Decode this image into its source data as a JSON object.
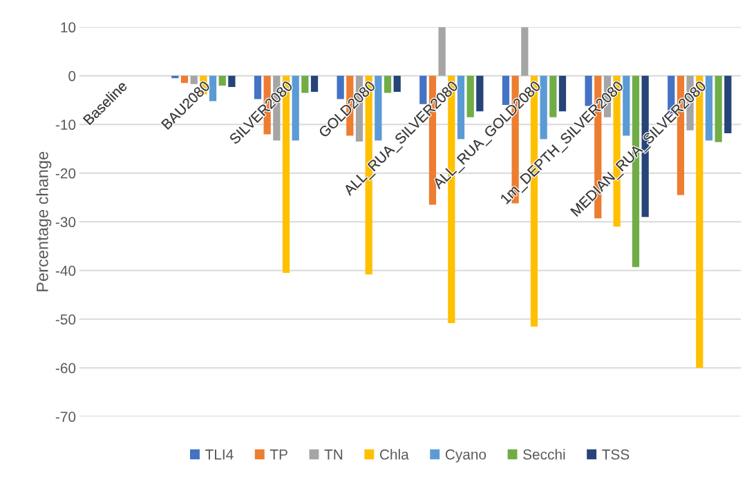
{
  "chart_data": {
    "type": "bar",
    "ylabel": "Percentage change",
    "categories": [
      "Baseline",
      "BAU2080",
      "SILVER2080",
      "GOLD2080",
      "ALL_RUA_SILVER2080",
      "ALL_RUA_GOLD2080",
      "1m_DEPTH_SILVER2080",
      "MEDIAN_RUA_SILVER2080"
    ],
    "series": [
      {
        "name": "TLI4",
        "color": "#4472c4",
        "values": [
          0,
          -0.5,
          -4.8,
          -4.8,
          -5.8,
          -6,
          -6.2,
          -7.8
        ]
      },
      {
        "name": "TP",
        "color": "#ed7d31",
        "values": [
          0,
          -1.5,
          -12,
          -12.3,
          -26.5,
          -26.2,
          -29.3,
          -24.5
        ]
      },
      {
        "name": "TN",
        "color": "#a5a5a5",
        "values": [
          0,
          -1.7,
          -13.3,
          -13.5,
          10,
          10,
          -8.5,
          -11.2
        ]
      },
      {
        "name": "Chla",
        "color": "#ffc000",
        "values": [
          0,
          -3.8,
          -40.5,
          -40.8,
          -50.8,
          -51.5,
          -31,
          -60
        ]
      },
      {
        "name": "Cyano",
        "color": "#5b9bd5",
        "values": [
          0,
          -5.2,
          -13.3,
          -13.3,
          -13,
          -13,
          -12.3,
          -13.3
        ]
      },
      {
        "name": "Secchi",
        "color": "#70ad47",
        "values": [
          0,
          -2,
          -3.5,
          -3.5,
          -8.5,
          -8.5,
          -39.3,
          -13.6
        ]
      },
      {
        "name": "TSS",
        "color": "#264478",
        "values": [
          0,
          -2.3,
          -3.3,
          -3.3,
          -7.3,
          -7.3,
          -29,
          -11.8
        ]
      }
    ],
    "ylim": [
      -70,
      10
    ],
    "yticks": [
      -70,
      -60,
      -50,
      -40,
      -30,
      -20,
      -10,
      0,
      10
    ],
    "grid": "y",
    "legend": "bottom"
  }
}
